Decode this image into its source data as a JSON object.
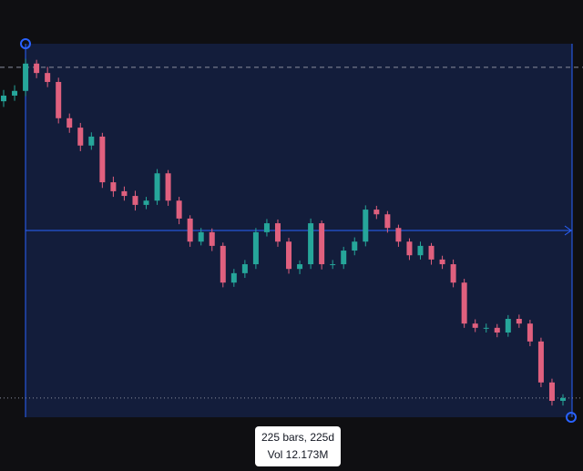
{
  "chart_data": {
    "type": "candlestick",
    "ylim": [
      0,
      100
    ],
    "up_color": "#26a69a",
    "down_color": "#e0607e",
    "open": [
      78.5,
      79.7,
      80.7,
      86.5,
      84.5,
      82.6,
      74.9,
      72.9,
      69.1,
      71.0,
      61.3,
      59.4,
      58.4,
      56.5,
      57.4,
      63.2,
      57.4,
      53.6,
      48.7,
      50.7,
      47.8,
      40.0,
      42.0,
      43.9,
      50.7,
      52.6,
      48.7,
      42.9,
      43.9,
      52.6,
      43.9,
      43.9,
      46.8,
      48.7,
      55.5,
      54.5,
      51.6,
      48.7,
      45.8,
      47.8,
      44.9,
      43.9,
      40.0,
      31.3,
      30.4,
      30.4,
      29.4,
      32.3,
      31.3,
      27.5,
      18.8,
      14.9
    ],
    "high": [
      80.9,
      81.9,
      87.5,
      87.3,
      85.8,
      83.5,
      75.9,
      73.9,
      71.9,
      71.8,
      62.5,
      60.4,
      59.5,
      58.2,
      64.1,
      63.9,
      58.2,
      54.3,
      51.6,
      51.5,
      48.5,
      42.9,
      44.8,
      51.6,
      53.5,
      53.4,
      49.5,
      44.7,
      53.6,
      53.2,
      44.8,
      47.6,
      49.6,
      56.4,
      56.3,
      55.2,
      52.3,
      49.4,
      48.7,
      48.4,
      45.7,
      44.9,
      40.8,
      32.2,
      31.3,
      31.2,
      33.1,
      33.2,
      32.1,
      28.3,
      19.6,
      16.3
    ],
    "low": [
      77.3,
      78.6,
      79.6,
      83.4,
      81.5,
      73.8,
      71.8,
      67.9,
      68.2,
      60.1,
      58.2,
      57.4,
      55.3,
      55.6,
      56.5,
      56.3,
      52.4,
      47.6,
      47.9,
      46.7,
      39.0,
      39.1,
      41.0,
      42.9,
      49.8,
      47.6,
      41.9,
      41.8,
      42.9,
      42.8,
      42.9,
      42.9,
      45.8,
      47.7,
      53.5,
      50.6,
      47.6,
      44.8,
      44.9,
      43.8,
      42.9,
      39.0,
      30.4,
      29.5,
      29.4,
      28.4,
      28.5,
      30.4,
      26.5,
      17.8,
      13.9,
      13.9
    ],
    "close": [
      79.7,
      80.7,
      86.5,
      84.5,
      82.6,
      74.9,
      72.9,
      69.1,
      71.0,
      61.3,
      59.4,
      58.4,
      56.5,
      57.4,
      63.2,
      57.4,
      53.6,
      48.7,
      50.7,
      47.8,
      40.0,
      42.0,
      43.9,
      50.7,
      52.6,
      48.7,
      42.9,
      43.9,
      52.6,
      43.9,
      43.9,
      46.8,
      48.7,
      55.5,
      54.5,
      51.6,
      48.7,
      45.8,
      47.8,
      44.9,
      43.9,
      40.0,
      31.3,
      30.4,
      30.4,
      29.4,
      32.3,
      31.3,
      27.5,
      18.8,
      14.9,
      15.5
    ],
    "reference_lines": [
      85.7,
      15.5
    ]
  },
  "tooltip": {
    "bars": "225 bars, 225d",
    "volume": "Vol 12.173M"
  }
}
